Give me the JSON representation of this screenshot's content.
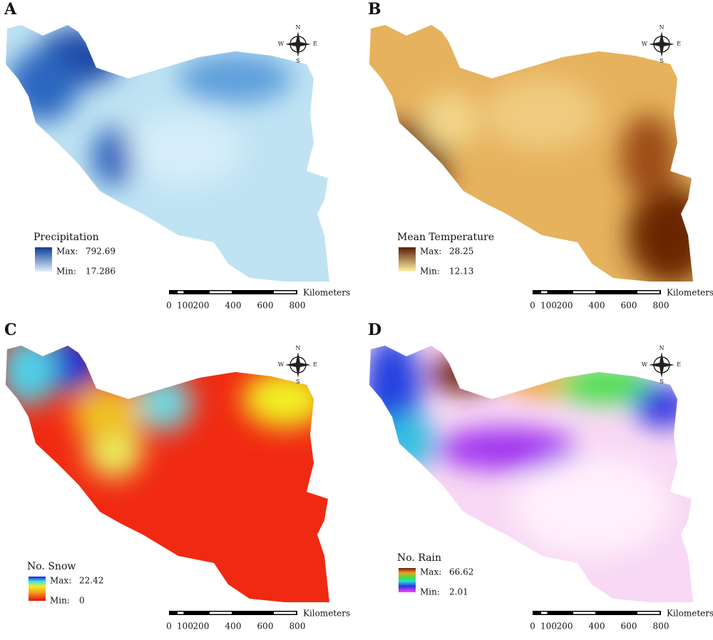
{
  "panels": [
    {
      "letter": "A",
      "legend": {
        "title": "Precipitation",
        "max_label": "Max:",
        "max": 792.69,
        "min_label": "Min:",
        "min": 17.286
      },
      "scale": {
        "ticks": [
          0,
          100,
          200,
          400,
          600,
          800
        ],
        "unit": "Kilometers"
      },
      "compass": {
        "n": "N",
        "s": "S",
        "e": "E",
        "w": "W"
      }
    },
    {
      "letter": "B",
      "legend": {
        "title": "Mean Temperature",
        "max_label": "Max:",
        "max": 28.25,
        "min_label": "Min:",
        "min": 12.13
      },
      "scale": {
        "ticks": [
          0,
          100,
          200,
          400,
          600,
          800
        ],
        "unit": "Kilometers"
      },
      "compass": {
        "n": "N",
        "s": "S",
        "e": "E",
        "w": "W"
      }
    },
    {
      "letter": "C",
      "legend": {
        "title": "No. Snow",
        "max_label": "Max:",
        "max": 22.42,
        "min_label": "Min:",
        "min": 0
      },
      "scale": {
        "ticks": [
          0,
          100,
          200,
          400,
          600,
          800
        ],
        "unit": "Kilometers"
      },
      "compass": {
        "n": "N",
        "s": "S",
        "e": "E",
        "w": "W"
      }
    },
    {
      "letter": "D",
      "legend": {
        "title": "No. Rain",
        "max_label": "Max:",
        "max": 66.62,
        "min_label": "Min:",
        "min": 2.01
      },
      "scale": {
        "ticks": [
          0,
          100,
          200,
          400,
          600,
          800
        ],
        "unit": "Kilometers"
      },
      "compass": {
        "n": "N",
        "s": "S",
        "e": "E",
        "w": "W"
      }
    }
  ]
}
